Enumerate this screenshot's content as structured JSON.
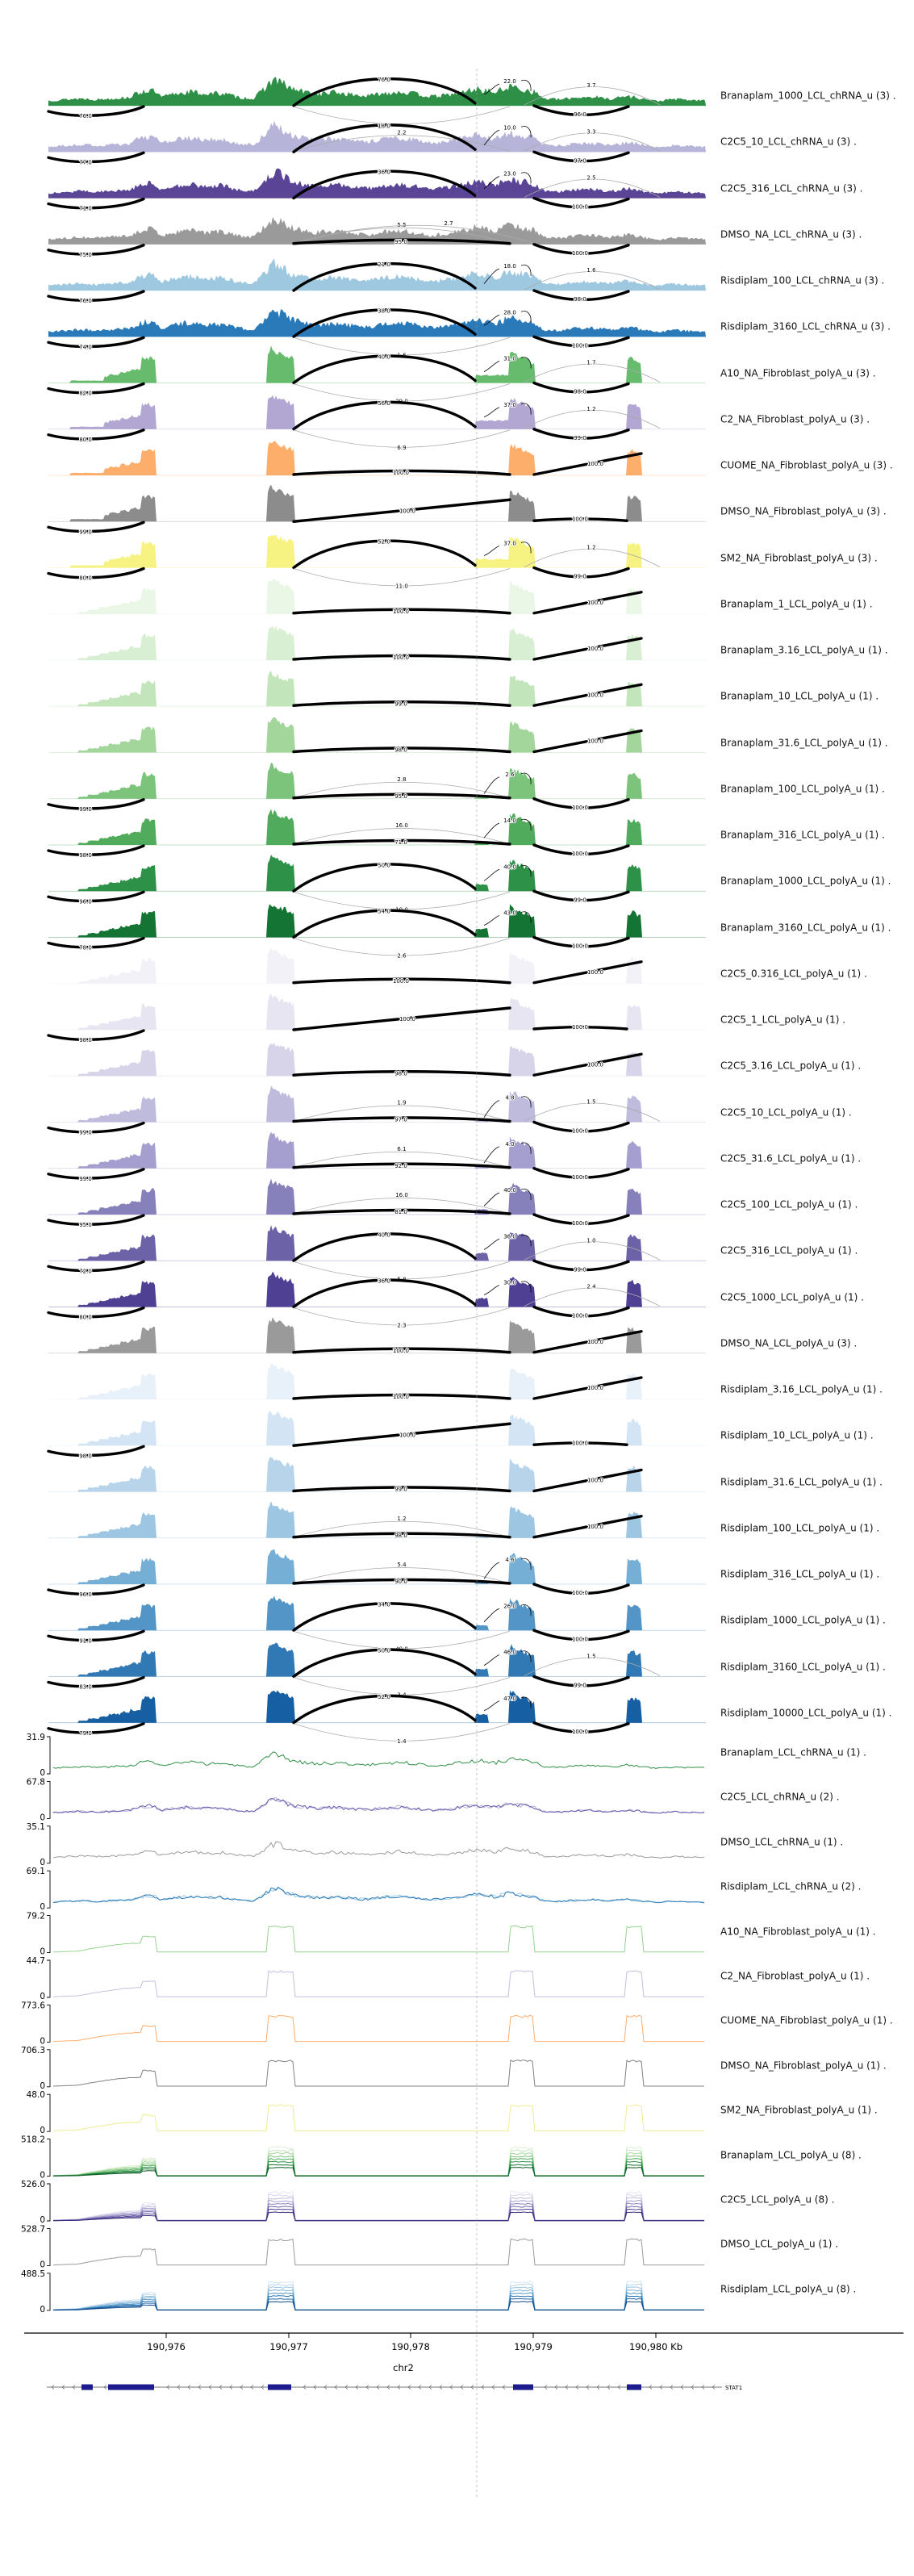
{
  "axis": {
    "chrom": "chr2",
    "ticks": [
      "190,976",
      "190,977",
      "190,978",
      "190,979",
      "190,980 Kb"
    ],
    "zero_label": "0"
  },
  "gene": {
    "name": "STAT1"
  },
  "chart_data": {
    "type": "sashimi-rna-seq-coverage",
    "region_chrom": "chr2",
    "x_tick_labels": [
      "190,976",
      "190,977",
      "190,978",
      "190,979",
      "190,980 Kb"
    ],
    "gene_annotation": "STAT1",
    "sashimi_tracks": [
      {
        "label": "Branaplam_1000_LCL_chRNA_u (3) .",
        "color": "#2e8f46",
        "style": "chRNA",
        "inc": 0.45,
        "arcs": [
          [
            "lb",
            "76.0"
          ],
          [
            "top",
            "76.0"
          ],
          [
            "callout",
            "22.0"
          ],
          [
            "ltr",
            "3.7"
          ],
          [
            "bm",
            ""
          ],
          [
            "rb",
            "96.0"
          ]
        ]
      },
      {
        "label": "C2C5_10_LCL_chRNA_u (3) .",
        "color": "#b6b4d8",
        "style": "chRNA",
        "inc": 0.2,
        "arcs": [
          [
            "lb",
            "77.0"
          ],
          [
            "lt2",
            "2.2"
          ],
          [
            "top",
            "18.0"
          ],
          [
            "callout",
            "10.0"
          ],
          [
            "ltr",
            "3.3"
          ],
          [
            "rb",
            "97.0"
          ]
        ]
      },
      {
        "label": "C2C5_316_LCL_chRNA_u (3) .",
        "color": "#5a4496",
        "style": "chRNA",
        "inc": 0.35,
        "arcs": [
          [
            "lb",
            "71.0"
          ],
          [
            "top",
            "36.0"
          ],
          [
            "callout",
            "23.0"
          ],
          [
            "ltr",
            "2.5"
          ],
          [
            "rb",
            "100.0"
          ]
        ]
      },
      {
        "label": "DMSO_NA_LCL_chRNA_u (3) .",
        "color": "#9a9a9a",
        "style": "chRNA",
        "inc": 0.06,
        "arcs": [
          [
            "lb",
            "75.0"
          ],
          [
            "lt2",
            "5.5"
          ],
          [
            "lt2b",
            "2.7"
          ],
          [
            "flat",
            "95.0"
          ],
          [
            "rb",
            "100.0"
          ]
        ]
      },
      {
        "label": "Risdiplam_100_LCL_chRNA_u (3) .",
        "color": "#9dc8e0",
        "style": "chRNA",
        "inc": 0.2,
        "arcs": [
          [
            "lb",
            "76.0"
          ],
          [
            "top",
            "21.0"
          ],
          [
            "callout",
            "18.0"
          ],
          [
            "ltr",
            "1.6"
          ],
          [
            "rb",
            "98.0"
          ]
        ]
      },
      {
        "label": "Risdiplam_3160_LCL_chRNA_u (3) .",
        "color": "#2a7ab9",
        "style": "chRNA",
        "inc": 0.45,
        "arcs": [
          [
            "lb",
            "74.0"
          ],
          [
            "top",
            "38.0"
          ],
          [
            "callout",
            "28.0"
          ],
          [
            "bm",
            "1.6"
          ],
          [
            "rb",
            "100.0"
          ]
        ]
      },
      {
        "label": "A10_NA_Fibroblast_polyA_u (3) .",
        "color": "#66bb6d",
        "style": "fib",
        "inc": 0.45,
        "arcs": [
          [
            "lb",
            "82.0"
          ],
          [
            "top",
            "40.0"
          ],
          [
            "callout",
            "31.0"
          ],
          [
            "bm",
            "29.0"
          ],
          [
            "ltr",
            "1.7"
          ],
          [
            "rb",
            "98.0"
          ]
        ]
      },
      {
        "label": "C2_NA_Fibroblast_polyA_u (3) .",
        "color": "#b2a7d3",
        "style": "fib",
        "inc": 0.5,
        "arcs": [
          [
            "lb",
            "80.0"
          ],
          [
            "top",
            "56.0"
          ],
          [
            "callout",
            "37.0"
          ],
          [
            "bm",
            "6.9"
          ],
          [
            "ltr",
            "1.2"
          ],
          [
            "rb",
            "99.0"
          ]
        ]
      },
      {
        "label": "CUOME_NA_Fibroblast_polyA_u (3) .",
        "color": "#fdae6b",
        "style": "fib",
        "inc": 0,
        "arcs": [
          [
            "flat",
            "100.0"
          ],
          [
            "diag",
            "100.0"
          ]
        ]
      },
      {
        "label": "DMSO_NA_Fibroblast_polyA_u (3) .",
        "color": "#8c8c8c",
        "style": "fib",
        "inc": 0,
        "arcs": [
          [
            "lb",
            "99.0"
          ],
          [
            "diagLong",
            "100.0"
          ],
          [
            "rbflat",
            "100.0"
          ]
        ]
      },
      {
        "label": "SM2_NA_Fibroblast_polyA_u (3) .",
        "color": "#f6f382",
        "style": "fib",
        "inc": 0.5,
        "arcs": [
          [
            "lb",
            "80.0"
          ],
          [
            "top",
            "52.0"
          ],
          [
            "callout",
            "37.0"
          ],
          [
            "bm",
            "11.0"
          ],
          [
            "ltr",
            "1.2"
          ],
          [
            "rb",
            "99.0"
          ]
        ]
      },
      {
        "label": "Branaplam_1_LCL_polyA_u (1) .",
        "color": "#eaf6e6",
        "style": "polyA",
        "inc": 0,
        "arcs": [
          [
            "flat",
            "100.0"
          ],
          [
            "diag",
            "100.0"
          ]
        ]
      },
      {
        "label": "Branaplam_3.16_LCL_polyA_u (1) .",
        "color": "#d9efd3",
        "style": "polyA",
        "inc": 0,
        "arcs": [
          [
            "flat",
            "100.0"
          ],
          [
            "diag",
            "100.0"
          ]
        ]
      },
      {
        "label": "Branaplam_10_LCL_polyA_u (1) .",
        "color": "#c3e5bb",
        "style": "polyA",
        "inc": 0,
        "arcs": [
          [
            "flat",
            "99.0"
          ],
          [
            "diag",
            "100.0"
          ]
        ]
      },
      {
        "label": "Branaplam_31.6_LCL_polyA_u (1) .",
        "color": "#a3d69b",
        "style": "polyA",
        "inc": 0,
        "arcs": [
          [
            "flat",
            "98.0"
          ],
          [
            "diag",
            "100.0"
          ]
        ]
      },
      {
        "label": "Branaplam_100_LCL_polyA_u (1) .",
        "color": "#7cc47c",
        "style": "polyA",
        "inc": 0.1,
        "arcs": [
          [
            "lb",
            "99.0"
          ],
          [
            "lt2",
            "2.8"
          ],
          [
            "flat",
            "95.0"
          ],
          [
            "callout",
            "2.6"
          ],
          [
            "rb",
            "100.0"
          ]
        ]
      },
      {
        "label": "Branaplam_316_LCL_polyA_u (1) .",
        "color": "#51ab5c",
        "style": "polyA",
        "inc": 0.22,
        "arcs": [
          [
            "lb",
            "98.0"
          ],
          [
            "lt2",
            "16.0"
          ],
          [
            "callout",
            "14.0"
          ],
          [
            "flat",
            "71.0"
          ],
          [
            "rb",
            "100.0"
          ]
        ]
      },
      {
        "label": "Branaplam_1000_LCL_polyA_u (1) .",
        "color": "#2e9148",
        "style": "polyA",
        "inc": 0.4,
        "arcs": [
          [
            "lb",
            "96.0"
          ],
          [
            "top",
            "50.0"
          ],
          [
            "callout",
            "40.0"
          ],
          [
            "bm",
            "10.0"
          ],
          [
            "rb",
            "99.0"
          ]
        ]
      },
      {
        "label": "Branaplam_3160_LCL_polyA_u (1) .",
        "color": "#147433",
        "style": "polyA",
        "inc": 0.5,
        "arcs": [
          [
            "lb",
            "78.0"
          ],
          [
            "top",
            "54.0"
          ],
          [
            "callout",
            "43.0"
          ],
          [
            "bm",
            "2.6"
          ],
          [
            "rb",
            "100.0"
          ]
        ]
      },
      {
        "label": "C2C5_0.316_LCL_polyA_u (1) .",
        "color": "#f3f1f8",
        "style": "polyA",
        "inc": 0,
        "arcs": [
          [
            "flat",
            "100.0"
          ],
          [
            "diag",
            "100.0"
          ]
        ]
      },
      {
        "label": "C2C5_1_LCL_polyA_u (1) .",
        "color": "#e8e5f2",
        "style": "polyA",
        "inc": 0,
        "arcs": [
          [
            "lb",
            "98.0"
          ],
          [
            "diagLong",
            "100.0"
          ],
          [
            "rbflat",
            "100.0"
          ]
        ]
      },
      {
        "label": "C2C5_3.16_LCL_polyA_u (1) .",
        "color": "#d7d4e9",
        "style": "polyA",
        "inc": 0,
        "arcs": [
          [
            "flat",
            "98.0"
          ],
          [
            "diag",
            "100.0"
          ]
        ]
      },
      {
        "label": "C2C5_10_LCL_polyA_u (1) .",
        "color": "#bfbbdd",
        "style": "polyA",
        "inc": 0.08,
        "arcs": [
          [
            "lb",
            "99.0"
          ],
          [
            "lt2",
            "1.9"
          ],
          [
            "flat",
            "97.0"
          ],
          [
            "callout",
            "4.8"
          ],
          [
            "ltr",
            "1.5"
          ],
          [
            "rb",
            "100.0"
          ]
        ]
      },
      {
        "label": "C2C5_31.6_LCL_polyA_u (1) .",
        "color": "#a49fce",
        "style": "polyA",
        "inc": 0.12,
        "arcs": [
          [
            "lb",
            "99.0"
          ],
          [
            "lt2",
            "6.1"
          ],
          [
            "flat",
            "92.0"
          ],
          [
            "callout",
            "4.0"
          ],
          [
            "rb",
            "100.0"
          ]
        ]
      },
      {
        "label": "C2C5_100_LCL_polyA_u (1) .",
        "color": "#8781bb",
        "style": "polyA",
        "inc": 0.3,
        "arcs": [
          [
            "lb",
            "95.0"
          ],
          [
            "lt2",
            "16.0"
          ],
          [
            "callout",
            "40.0"
          ],
          [
            "flat",
            "81.0"
          ],
          [
            "rb",
            "100.0"
          ]
        ]
      },
      {
        "label": "C2C5_316_LCL_polyA_u (1) .",
        "color": "#6b62a8",
        "style": "polyA",
        "inc": 0.45,
        "arcs": [
          [
            "lb",
            "72.0"
          ],
          [
            "top",
            "40.0"
          ],
          [
            "callout",
            "36.0"
          ],
          [
            "ltr",
            "1.0"
          ],
          [
            "bm",
            "5.8"
          ],
          [
            "rb",
            "99.0"
          ]
        ]
      },
      {
        "label": "C2C5_1000_LCL_polyA_u (1) .",
        "color": "#4f4093",
        "style": "polyA",
        "inc": 0.5,
        "arcs": [
          [
            "lb",
            "80.0"
          ],
          [
            "top",
            "36.0"
          ],
          [
            "callout",
            "30.0"
          ],
          [
            "bm",
            "2.3"
          ],
          [
            "ltr",
            "2.4"
          ],
          [
            "rb",
            "100.0"
          ]
        ]
      },
      {
        "label": "DMSO_NA_LCL_polyA_u (3) .",
        "color": "#9a9a9a",
        "style": "polyA",
        "inc": 0,
        "arcs": [
          [
            "flat",
            "100.0"
          ],
          [
            "diag",
            "100.0"
          ]
        ]
      },
      {
        "label": "Risdiplam_3.16_LCL_polyA_u (1) .",
        "color": "#e8f1f9",
        "style": "polyA",
        "inc": 0,
        "arcs": [
          [
            "flat",
            "100.0"
          ],
          [
            "diag",
            "100.0"
          ]
        ]
      },
      {
        "label": "Risdiplam_10_LCL_polyA_u (1) .",
        "color": "#d3e5f4",
        "style": "polyA",
        "inc": 0,
        "arcs": [
          [
            "lb",
            "98.0"
          ],
          [
            "diagLong",
            "100.0"
          ],
          [
            "rbflat",
            "100.0"
          ]
        ]
      },
      {
        "label": "Risdiplam_31.6_LCL_polyA_u (1) .",
        "color": "#b7d4ea",
        "style": "polyA",
        "inc": 0,
        "arcs": [
          [
            "flat",
            "99.0"
          ],
          [
            "diag",
            "100.0"
          ]
        ]
      },
      {
        "label": "Risdiplam_100_LCL_polyA_u (1) .",
        "color": "#9cc6e2",
        "style": "polyA",
        "inc": 0.05,
        "arcs": [
          [
            "lt2",
            "1.2"
          ],
          [
            "flat",
            "98.0"
          ],
          [
            "diag",
            "100.0"
          ]
        ]
      },
      {
        "label": "Risdiplam_316_LCL_polyA_u (1) .",
        "color": "#76afd6",
        "style": "polyA",
        "inc": 0.12,
        "arcs": [
          [
            "lb",
            "96.0"
          ],
          [
            "lt2",
            "5.4"
          ],
          [
            "flat",
            "90.0"
          ],
          [
            "callout",
            "4.6"
          ],
          [
            "rb",
            "100.0"
          ]
        ]
      },
      {
        "label": "Risdiplam_1000_LCL_polyA_u (1) .",
        "color": "#5295c6",
        "style": "polyA",
        "inc": 0.3,
        "arcs": [
          [
            "lb",
            "91.0"
          ],
          [
            "top",
            "34.0"
          ],
          [
            "callout",
            "26.0"
          ],
          [
            "bm",
            "40.0"
          ],
          [
            "rb",
            "100.0"
          ]
        ]
      },
      {
        "label": "Risdiplam_3160_LCL_polyA_u (1) .",
        "color": "#3079b5",
        "style": "polyA",
        "inc": 0.45,
        "arcs": [
          [
            "lb",
            "83.0"
          ],
          [
            "top",
            "50.0"
          ],
          [
            "callout",
            "46.0"
          ],
          [
            "ltr",
            "1.5"
          ],
          [
            "bm",
            "3.4"
          ],
          [
            "rb",
            "99.0"
          ]
        ]
      },
      {
        "label": "Risdiplam_10000_LCL_polyA_u (1) .",
        "color": "#175fa3",
        "style": "polyA",
        "inc": 0.5,
        "arcs": [
          [
            "lb",
            "79.0"
          ],
          [
            "top",
            "52.0"
          ],
          [
            "callout",
            "47.0"
          ],
          [
            "bm",
            "1.4"
          ],
          [
            "rb",
            "100.0"
          ]
        ]
      }
    ],
    "line_tracks": [
      {
        "label": "Branaplam_LCL_chRNA_u (1) .",
        "ymax": "31.9",
        "style": "wiggle",
        "colors": [
          "#2e8f46"
        ]
      },
      {
        "label": "C2C5_LCL_chRNA_u (2) .",
        "ymax": "67.8",
        "style": "wiggle",
        "colors": [
          "#6a5aad",
          "#b6b4d8"
        ]
      },
      {
        "label": "DMSO_LCL_chRNA_u (1) .",
        "ymax": "35.1",
        "style": "wiggle",
        "colors": [
          "#9a9a9a"
        ]
      },
      {
        "label": "Risdiplam_LCL_chRNA_u (2) .",
        "ymax": "69.1",
        "style": "wiggle",
        "colors": [
          "#2a7ab9",
          "#9dc8e0"
        ]
      },
      {
        "label": "A10_NA_Fibroblast_polyA_u (1) .",
        "ymax": "79.2",
        "style": "peaks",
        "colors": [
          "#97d490"
        ]
      },
      {
        "label": "C2_NA_Fibroblast_polyA_u (1) .",
        "ymax": "44.7",
        "style": "peaks",
        "colors": [
          "#c7bede"
        ]
      },
      {
        "label": "CUOME_NA_Fibroblast_polyA_u (1) .",
        "ymax": "773.6",
        "style": "peaks",
        "colors": [
          "#fdae6b"
        ]
      },
      {
        "label": "DMSO_NA_Fibroblast_polyA_u (1) .",
        "ymax": "706.3",
        "style": "peaks",
        "colors": [
          "#808080"
        ]
      },
      {
        "label": "SM2_NA_Fibroblast_polyA_u (1) .",
        "ymax": "48.0",
        "style": "peaks",
        "colors": [
          "#f0ec8f"
        ]
      },
      {
        "label": "Branaplam_LCL_polyA_u (8) .",
        "ymax": "518.2",
        "style": "stack",
        "colors": [
          "#d9efd3",
          "#c3e5bb",
          "#a3d69b",
          "#7cc47c",
          "#51ab5c",
          "#2e9148",
          "#147433",
          "#0b5a26"
        ]
      },
      {
        "label": "C2C5_LCL_polyA_u (8) .",
        "ymax": "526.0",
        "style": "stack",
        "colors": [
          "#e8e5f2",
          "#d7d4e9",
          "#bfbbdd",
          "#a49fce",
          "#8781bb",
          "#6b62a8",
          "#4f4093",
          "#3b2d7e"
        ]
      },
      {
        "label": "DMSO_LCL_polyA_u (1) .",
        "ymax": "528.7",
        "style": "peaks",
        "colors": [
          "#9a9a9a"
        ]
      },
      {
        "label": "Risdiplam_LCL_polyA_u (8) .",
        "ymax": "488.5",
        "style": "stack",
        "colors": [
          "#d3e5f4",
          "#b7d4ea",
          "#9cc6e2",
          "#76afd6",
          "#5295c6",
          "#3079b5",
          "#175fa3",
          "#0d4a8b"
        ]
      }
    ]
  }
}
